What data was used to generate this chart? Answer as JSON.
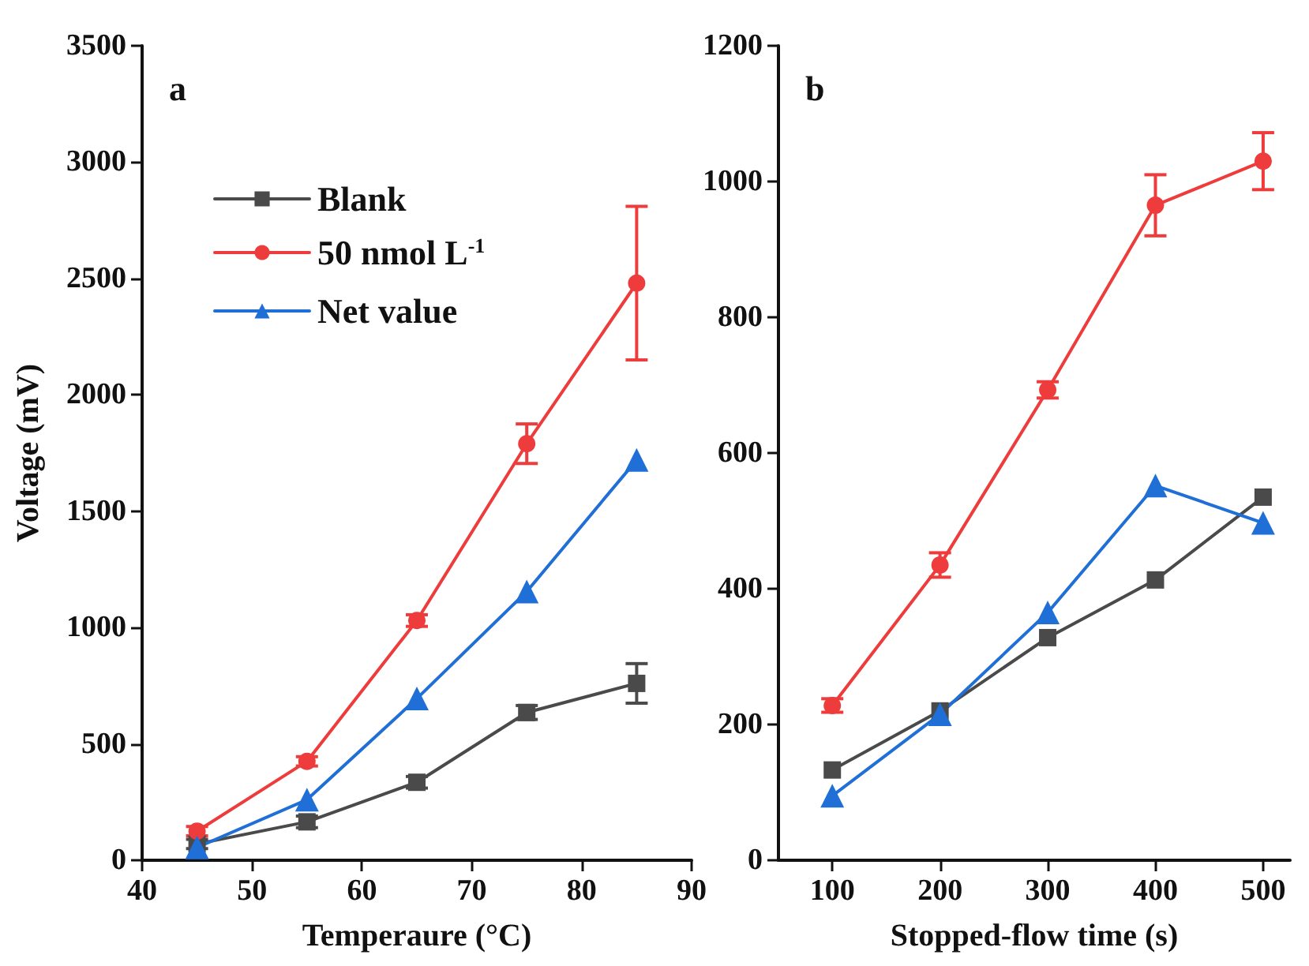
{
  "chart_data": [
    {
      "type": "line",
      "title": "a",
      "xlabel": "Temperaure (°C)",
      "ylabel": "Voltage (mV)",
      "x": [
        45,
        55,
        65,
        75,
        85
      ],
      "xlim": [
        40,
        90
      ],
      "xticks": [
        40,
        50,
        60,
        70,
        80,
        90
      ],
      "ylim": [
        0,
        3500
      ],
      "yticks": [
        0,
        500,
        1000,
        1500,
        2000,
        2500,
        3000,
        3500
      ],
      "legend": "top left",
      "grid": false,
      "series": [
        {
          "name": "Blank",
          "color": "#4a4a4a",
          "marker": "square",
          "values": [
            70,
            165,
            335,
            635,
            760
          ],
          "errors": [
            20,
            25,
            25,
            30,
            85
          ]
        },
        {
          "name": "50 nmol L$^{-1}$",
          "color": "#ee3b3b",
          "marker": "circle",
          "values": [
            125,
            425,
            1030,
            1790,
            2480
          ],
          "errors": [
            20,
            20,
            25,
            85,
            330
          ]
        },
        {
          "name": "Net value",
          "color": "#1f6fd6",
          "marker": "triangle",
          "values": [
            55,
            260,
            695,
            1155,
            1720
          ]
        }
      ]
    },
    {
      "type": "line",
      "title": "b",
      "xlabel": "Stopped-flow time (s)",
      "x": [
        100,
        200,
        300,
        400,
        500
      ],
      "xlim": [
        50,
        525
      ],
      "xticks": [
        100,
        200,
        300,
        400,
        500
      ],
      "ylim": [
        0,
        1200
      ],
      "yticks": [
        0,
        200,
        400,
        600,
        800,
        1000,
        1200
      ],
      "legend": false,
      "grid": false,
      "series": [
        {
          "color": "#4a4a4a",
          "marker": "square",
          "values": [
            133,
            220,
            328,
            413,
            535
          ]
        },
        {
          "color": "#ee3b3b",
          "marker": "circle",
          "values": [
            228,
            435,
            693,
            965,
            1030
          ],
          "errors": [
            10,
            18,
            12,
            45,
            42
          ]
        },
        {
          "color": "#1f6fd6",
          "marker": "triangle",
          "values": [
            95,
            215,
            365,
            552,
            497
          ]
        }
      ]
    }
  ]
}
